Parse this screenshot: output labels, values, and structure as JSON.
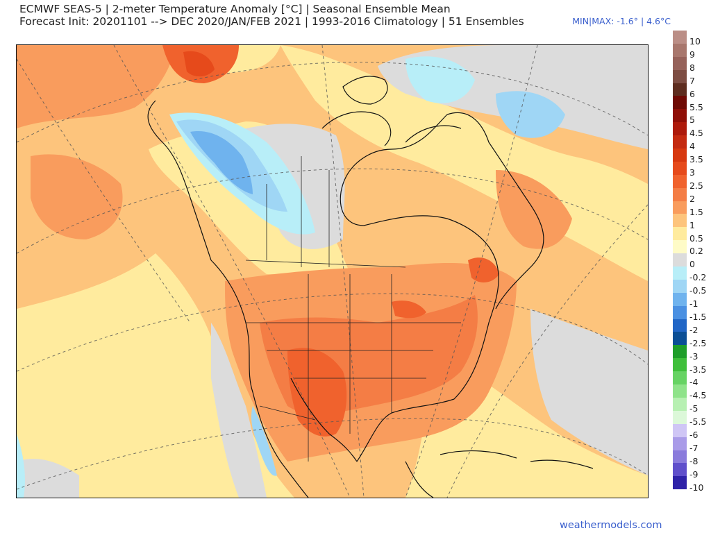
{
  "header": {
    "title_line1": "ECMWF SEAS-5 | 2-meter Temperature Anomaly [°C] | Seasonal Ensemble Mean",
    "title_line2": "Forecast Init: 20201101 --> DEC 2020/JAN/FEB 2021  | 1993-2016 Climatology | 51 Ensembles",
    "min_max": "MIN|MAX: -1.6° | 4.6°C"
  },
  "colorbar": {
    "entries": [
      {
        "label": "10",
        "color": "#bb8e86"
      },
      {
        "label": "9",
        "color": "#a8776d"
      },
      {
        "label": "8",
        "color": "#96625a"
      },
      {
        "label": "7",
        "color": "#7d4d42"
      },
      {
        "label": "6",
        "color": "#5e2d1f"
      },
      {
        "label": "5.5",
        "color": "#6f0a04"
      },
      {
        "label": "5",
        "color": "#8f0f07"
      },
      {
        "label": "4.5",
        "color": "#ad1a0b"
      },
      {
        "label": "4",
        "color": "#c42a10"
      },
      {
        "label": "3.5",
        "color": "#d7380f"
      },
      {
        "label": "3",
        "color": "#e64a1b"
      },
      {
        "label": "2.5",
        "color": "#f0622d"
      },
      {
        "label": "2",
        "color": "#f47d45"
      },
      {
        "label": "1.5",
        "color": "#f99c5d"
      },
      {
        "label": "1",
        "color": "#fdc47c"
      },
      {
        "label": "0.5",
        "color": "#ffeb9e"
      },
      {
        "label": "0.2",
        "color": "#fefbc7"
      },
      {
        "label": "0",
        "color": "#dcdcdc"
      },
      {
        "label": "-0.2",
        "color": "#b8eef8"
      },
      {
        "label": "-0.5",
        "color": "#9fd6f5"
      },
      {
        "label": "-1",
        "color": "#6fb3ee"
      },
      {
        "label": "-1.5",
        "color": "#4a90e2"
      },
      {
        "label": "-2",
        "color": "#2166c6"
      },
      {
        "label": "-2.5",
        "color": "#0b4f96"
      },
      {
        "label": "-3",
        "color": "#1f9e2a"
      },
      {
        "label": "-3.5",
        "color": "#3fbf3b"
      },
      {
        "label": "-4",
        "color": "#66d363"
      },
      {
        "label": "-4.5",
        "color": "#8fe38a"
      },
      {
        "label": "-5",
        "color": "#b7f0b2"
      },
      {
        "label": "-5.5",
        "color": "#dcf8d9"
      },
      {
        "label": "-6",
        "color": "#cfc6f5"
      },
      {
        "label": "-7",
        "color": "#a99be8"
      },
      {
        "label": "-8",
        "color": "#8a7bdc"
      },
      {
        "label": "-9",
        "color": "#5f4fcb"
      },
      {
        "label": "-10",
        "color": "#2e22a8"
      }
    ]
  },
  "credit": "weathermodels.com"
}
